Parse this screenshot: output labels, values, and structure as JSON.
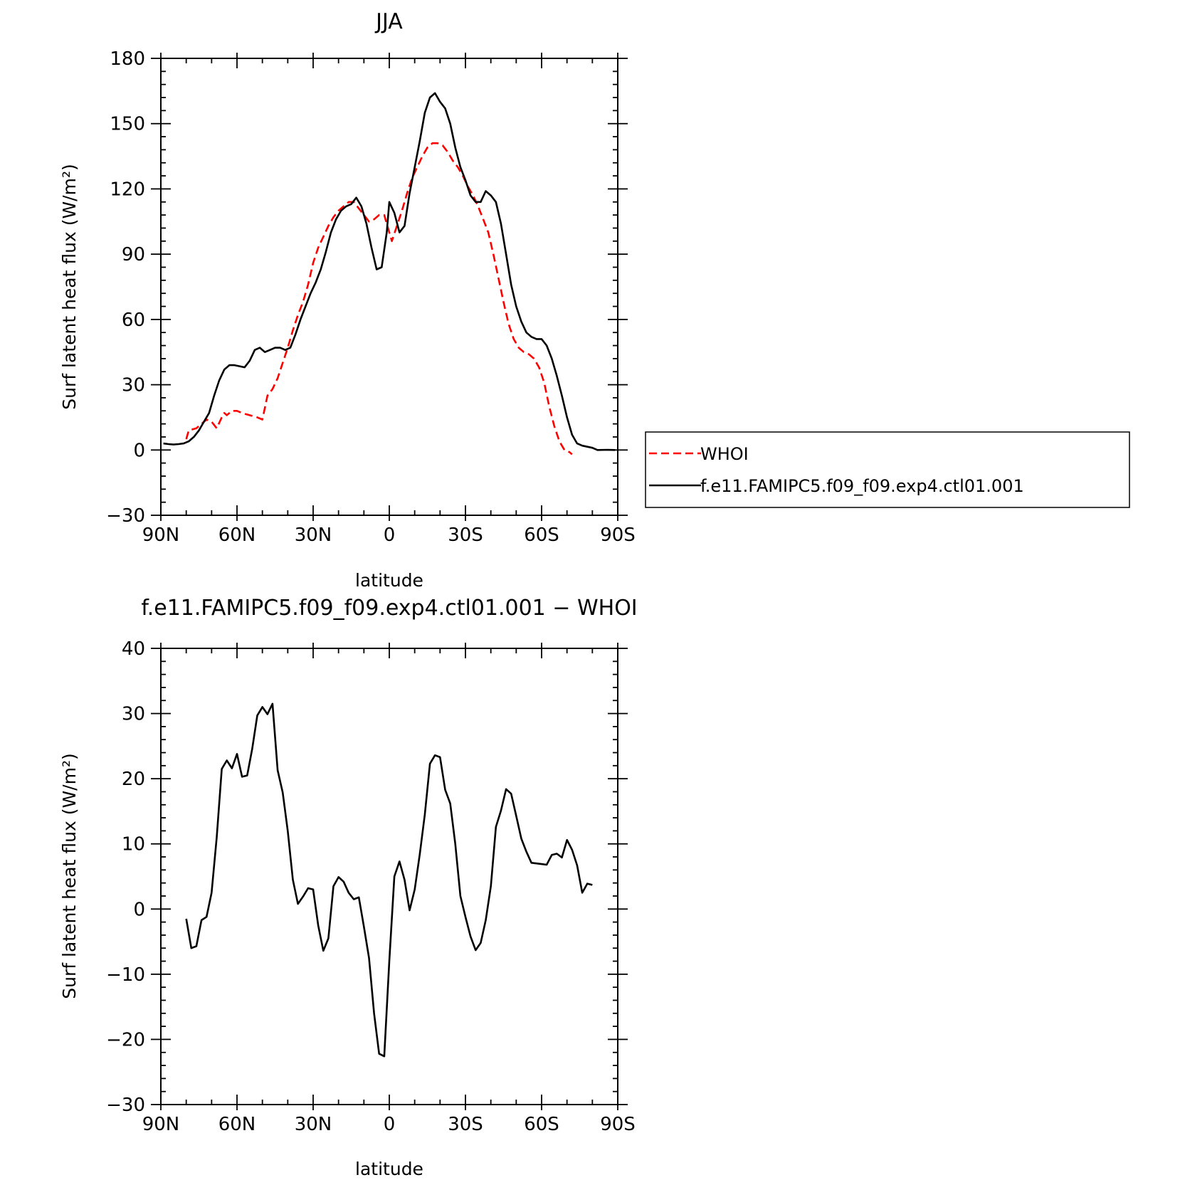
{
  "figure": {
    "legend": {
      "items": [
        {
          "label": "WHOI",
          "color": "#ff0000",
          "dash": "dashed"
        },
        {
          "label": "f.e11.FAMIPC5.f09_f09.exp4.ctl01.001",
          "color": "#000000",
          "dash": "solid"
        }
      ]
    }
  },
  "chart_data": [
    {
      "type": "line",
      "title": "JJA",
      "xlabel": "latitude",
      "ylabel": "Surf latent heat flux (W/m²)",
      "xlim": [
        90,
        -90
      ],
      "ylim": [
        -30,
        180
      ],
      "xticks": [
        90,
        60,
        30,
        0,
        -30,
        -60,
        -90
      ],
      "xtick_labels": [
        "90N",
        "60N",
        "30N",
        "0",
        "30S",
        "60S",
        "90S"
      ],
      "yticks": [
        -30,
        0,
        30,
        60,
        90,
        120,
        150,
        180
      ],
      "ytick_labels": [
        "−30",
        "0",
        "30",
        "60",
        "90",
        "120",
        "150",
        "180"
      ],
      "series": [
        {
          "name": "WHOI",
          "color": "#ff0000",
          "dash": "dashed",
          "points": [
            [
              80,
              5
            ],
            [
              79,
              9
            ],
            [
              76,
              10
            ],
            [
              74,
              12
            ],
            [
              72,
              14
            ],
            [
              70,
              13
            ],
            [
              68,
              10
            ],
            [
              66,
              15
            ],
            [
              65,
              17
            ],
            [
              64,
              16
            ],
            [
              62,
              18
            ],
            [
              60,
              18
            ],
            [
              58,
              17
            ],
            [
              55,
              16
            ],
            [
              52,
              15
            ],
            [
              50,
              14
            ],
            [
              48,
              25
            ],
            [
              46,
              28
            ],
            [
              44,
              33
            ],
            [
              42,
              40
            ],
            [
              40,
              47
            ],
            [
              38,
              55
            ],
            [
              36,
              62
            ],
            [
              34,
              68
            ],
            [
              32,
              76
            ],
            [
              30,
              86
            ],
            [
              28,
              93
            ],
            [
              26,
              98
            ],
            [
              24,
              103
            ],
            [
              22,
              107
            ],
            [
              20,
              110
            ],
            [
              18,
              112
            ],
            [
              16,
              114
            ],
            [
              14,
              114
            ],
            [
              12,
              111
            ],
            [
              10,
              108
            ],
            [
              8,
              105
            ],
            [
              6,
              106
            ],
            [
              4,
              108
            ],
            [
              2,
              108
            ],
            [
              1,
              104
            ],
            [
              -1,
              96
            ],
            [
              -3,
              103
            ],
            [
              -5,
              110
            ],
            [
              -7,
              118
            ],
            [
              -9,
              125
            ],
            [
              -11,
              130
            ],
            [
              -13,
              135
            ],
            [
              -15,
              139
            ],
            [
              -17,
              141
            ],
            [
              -19,
              141
            ],
            [
              -21,
              140
            ],
            [
              -23,
              137
            ],
            [
              -25,
              133
            ],
            [
              -27,
              130
            ],
            [
              -29,
              126
            ],
            [
              -31,
              121
            ],
            [
              -33,
              117
            ],
            [
              -35,
              112
            ],
            [
              -37,
              106
            ],
            [
              -39,
              100
            ],
            [
              -41,
              90
            ],
            [
              -43,
              79
            ],
            [
              -45,
              68
            ],
            [
              -47,
              58
            ],
            [
              -49,
              51
            ],
            [
              -51,
              47
            ],
            [
              -53,
              45
            ],
            [
              -55,
              44
            ],
            [
              -57,
              42
            ],
            [
              -59,
              38
            ],
            [
              -61,
              31
            ],
            [
              -63,
              20
            ],
            [
              -65,
              11
            ],
            [
              -67,
              4
            ],
            [
              -69,
              0
            ],
            [
              -71,
              -1
            ],
            [
              -72,
              -2
            ]
          ]
        },
        {
          "name": "f.e11.FAMIPC5.f09_f09.exp4.ctl01.001",
          "color": "#000000",
          "dash": "solid",
          "points": [
            [
              89,
              3
            ],
            [
              87,
              2.7
            ],
            [
              85,
              2.5
            ],
            [
              83,
              2.7
            ],
            [
              81,
              3
            ],
            [
              79,
              4
            ],
            [
              77,
              6
            ],
            [
              75,
              9
            ],
            [
              73,
              13
            ],
            [
              71,
              17
            ],
            [
              69,
              25
            ],
            [
              67,
              32
            ],
            [
              65,
              37
            ],
            [
              63,
              39
            ],
            [
              61,
              39
            ],
            [
              59,
              38.5
            ],
            [
              57,
              38
            ],
            [
              55,
              41
            ],
            [
              53,
              46
            ],
            [
              51,
              47
            ],
            [
              49,
              45
            ],
            [
              47,
              46
            ],
            [
              45,
              47
            ],
            [
              43,
              47
            ],
            [
              41,
              46
            ],
            [
              39,
              47
            ],
            [
              37,
              53
            ],
            [
              35,
              60
            ],
            [
              33,
              66
            ],
            [
              31,
              72
            ],
            [
              29,
              77
            ],
            [
              27,
              83
            ],
            [
              25,
              91
            ],
            [
              23,
              100
            ],
            [
              21,
              106
            ],
            [
              19,
              110
            ],
            [
              17,
              112
            ],
            [
              15,
              113
            ],
            [
              13,
              116
            ],
            [
              11,
              112
            ],
            [
              9,
              104
            ],
            [
              7,
              93
            ],
            [
              5,
              83
            ],
            [
              3,
              84
            ],
            [
              1,
              100
            ],
            [
              0,
              114
            ],
            [
              -2,
              109
            ],
            [
              -4,
              100
            ],
            [
              -6,
              103
            ],
            [
              -8,
              118
            ],
            [
              -10,
              130
            ],
            [
              -12,
              142
            ],
            [
              -14,
              155
            ],
            [
              -16,
              162
            ],
            [
              -18,
              164
            ],
            [
              -20,
              160
            ],
            [
              -22,
              157
            ],
            [
              -24,
              150
            ],
            [
              -26,
              139
            ],
            [
              -28,
              130
            ],
            [
              -30,
              124
            ],
            [
              -32,
              117
            ],
            [
              -34,
              114
            ],
            [
              -36,
              114
            ],
            [
              -38,
              119
            ],
            [
              -40,
              117
            ],
            [
              -42,
              114
            ],
            [
              -44,
              104
            ],
            [
              -46,
              90
            ],
            [
              -48,
              76
            ],
            [
              -50,
              66
            ],
            [
              -52,
              59
            ],
            [
              -54,
              54
            ],
            [
              -56,
              52
            ],
            [
              -58,
              51
            ],
            [
              -60,
              51
            ],
            [
              -62,
              48
            ],
            [
              -64,
              42
            ],
            [
              -66,
              34
            ],
            [
              -68,
              25
            ],
            [
              -70,
              15
            ],
            [
              -72,
              7
            ],
            [
              -74,
              3
            ],
            [
              -76,
              2
            ],
            [
              -78,
              1.5
            ],
            [
              -80,
              1
            ],
            [
              -82,
              0
            ],
            [
              -86,
              0.1
            ],
            [
              -89,
              0
            ]
          ]
        }
      ]
    },
    {
      "type": "line",
      "title": "f.e11.FAMIPC5.f09_f09.exp4.ctl01.001 − WHOI",
      "xlabel": "latitude",
      "ylabel": "Surf latent heat flux (W/m²)",
      "xlim": [
        90,
        -90
      ],
      "ylim": [
        -30,
        40
      ],
      "xticks": [
        90,
        60,
        30,
        0,
        -30,
        -60,
        -90
      ],
      "xtick_labels": [
        "90N",
        "60N",
        "30N",
        "0",
        "30S",
        "60S",
        "90S"
      ],
      "yticks": [
        -30,
        -20,
        -10,
        0,
        10,
        20,
        30,
        40
      ],
      "ytick_labels": [
        "−30",
        "−20",
        "−10",
        "0",
        "10",
        "20",
        "30",
        "40"
      ],
      "series": [
        {
          "color": "#000000",
          "dash": "solid",
          "points": [
            [
              80,
              -1.5
            ],
            [
              78,
              -6
            ],
            [
              76,
              -5.7
            ],
            [
              74,
              -1.7
            ],
            [
              72,
              -1.2
            ],
            [
              70,
              2.5
            ],
            [
              68,
              11
            ],
            [
              66,
              21.5
            ],
            [
              64,
              22.8
            ],
            [
              62,
              21.6
            ],
            [
              60,
              23.8
            ],
            [
              58,
              20.3
            ],
            [
              56,
              20.5
            ],
            [
              54,
              24.6
            ],
            [
              52,
              29.7
            ],
            [
              50,
              31
            ],
            [
              48,
              29.9
            ],
            [
              46,
              31.5
            ],
            [
              44,
              21.3
            ],
            [
              42,
              17.9
            ],
            [
              40,
              12
            ],
            [
              38,
              4.5
            ],
            [
              36,
              0.8
            ],
            [
              34,
              1.9
            ],
            [
              32,
              3.2
            ],
            [
              30,
              3.0
            ],
            [
              28,
              -2.5
            ],
            [
              26,
              -6.4
            ],
            [
              24,
              -4.5
            ],
            [
              22,
              3.5
            ],
            [
              20,
              4.9
            ],
            [
              18,
              4.2
            ],
            [
              16,
              2.5
            ],
            [
              14,
              1.5
            ],
            [
              12,
              1.8
            ],
            [
              10,
              -2.7
            ],
            [
              8,
              -7.5
            ],
            [
              6,
              -16
            ],
            [
              4,
              -22.2
            ],
            [
              2,
              -22.6
            ],
            [
              0,
              -8
            ],
            [
              -2,
              5
            ],
            [
              -4,
              7.3
            ],
            [
              -6,
              4.5
            ],
            [
              -8,
              -0.2
            ],
            [
              -10,
              3
            ],
            [
              -12,
              8.4
            ],
            [
              -14,
              14.5
            ],
            [
              -16,
              22.3
            ],
            [
              -18,
              23.6
            ],
            [
              -20,
              23.3
            ],
            [
              -22,
              18.3
            ],
            [
              -24,
              16.2
            ],
            [
              -26,
              10
            ],
            [
              -28,
              2
            ],
            [
              -30,
              -1.2
            ],
            [
              -32,
              -4.2
            ],
            [
              -34,
              -6.3
            ],
            [
              -36,
              -5.2
            ],
            [
              -38,
              -1.7
            ],
            [
              -40,
              3.5
            ],
            [
              -42,
              12.6
            ],
            [
              -44,
              15.1
            ],
            [
              -46,
              18.4
            ],
            [
              -48,
              17.7
            ],
            [
              -50,
              14.3
            ],
            [
              -52,
              10.8
            ],
            [
              -54,
              8.8
            ],
            [
              -56,
              7.1
            ],
            [
              -58,
              7
            ],
            [
              -60,
              6.9
            ],
            [
              -62,
              6.8
            ],
            [
              -64,
              8.3
            ],
            [
              -66,
              8.5
            ],
            [
              -68,
              7.9
            ],
            [
              -70,
              10.6
            ],
            [
              -72,
              9.1
            ],
            [
              -74,
              6.7
            ],
            [
              -76,
              2.5
            ],
            [
              -78,
              3.9
            ],
            [
              -80,
              3.7
            ]
          ]
        }
      ]
    }
  ]
}
